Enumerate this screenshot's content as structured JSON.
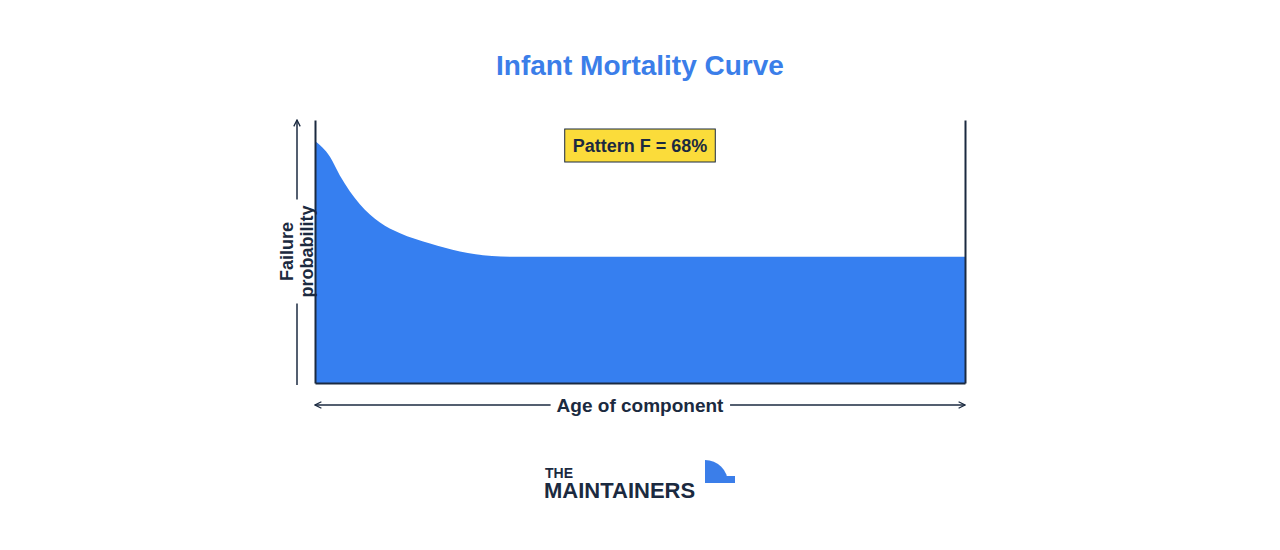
{
  "chart_data": {
    "type": "area",
    "title": "Infant Mortality Curve",
    "x_label": "Age of component",
    "y_label": "Failure probability",
    "annotation": "Pattern F = 68%",
    "x": [
      0,
      2.3,
      3.8,
      6.9,
      10,
      13,
      17.7,
      22.3,
      30,
      100
    ],
    "values": [
      92,
      86,
      79,
      68,
      61,
      57,
      53,
      50,
      48,
      48
    ],
    "color": "#367ff0",
    "xlim": [
      0,
      100
    ],
    "ylim": [
      0,
      100
    ],
    "tick_labels": false,
    "grid": false
  },
  "logo": {
    "lines": [
      "THE",
      "MAINTAINERS"
    ]
  }
}
